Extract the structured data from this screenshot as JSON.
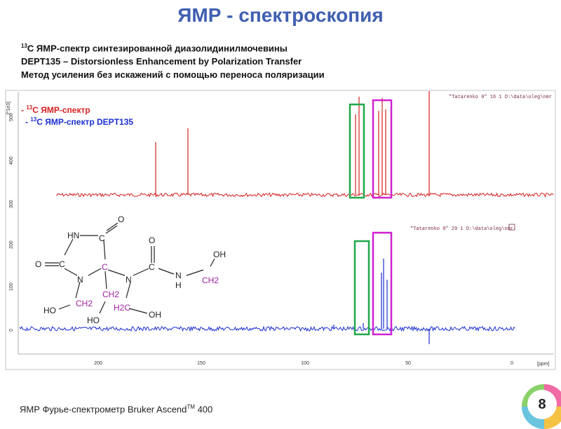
{
  "title": "ЯМР - спектроскопия",
  "subtitle": {
    "line1_sup": "13",
    "line1_text": "C  ЯМР-спектр синтезированной диазолидинилмочевины",
    "line2": "DEPT135 – Distorsionless Enhancement by Polarization Transfer",
    "line3": "Метод усиления без искажений  с  помощью переноса поляризации"
  },
  "legend": {
    "red_prefix": "- ",
    "red_sup": "13",
    "red_text": "C  ЯМР-спектр",
    "blue_prefix": "- ",
    "blue_sup": "13",
    "blue_text": "C  ЯМР-спектр DEPT135"
  },
  "plot": {
    "top_note": "\"Tatarenko 0\"  16  1  D:\\data\\oleg\\nmr",
    "bottom_note": "\"Tatarenko 0\"  29  1  D:\\data\\oleg\\nmr",
    "yunit_top": "[*1e3]",
    "xunit": "[ppm]",
    "xticks": [
      "200",
      "150",
      "100",
      "50",
      "0"
    ],
    "yticks_top": [
      "500",
      "400",
      "300"
    ],
    "yticks_bottom": [
      "200",
      "100",
      "0"
    ]
  },
  "molecule": {
    "labels": [
      "HN",
      "O",
      "C",
      "O",
      "C",
      "N",
      "C",
      "N",
      "C",
      "O",
      "N",
      "H",
      "OH",
      "CH2",
      "HO",
      "CH2",
      "CH2",
      "HO",
      "H2C",
      "OH"
    ]
  },
  "colors": {
    "title": "#3f5fb0",
    "red_spectrum": "#d42020",
    "blue_spectrum": "#1a2fd0",
    "green_box": "#1fa84a",
    "magenta_box": "#d020d0",
    "chem_purple": "#a020a0"
  },
  "footer": {
    "text": "ЯМР Фурье-спектрометр Bruker Ascend",
    "sup": "TM",
    "model": " 400"
  },
  "page_number": "8"
}
